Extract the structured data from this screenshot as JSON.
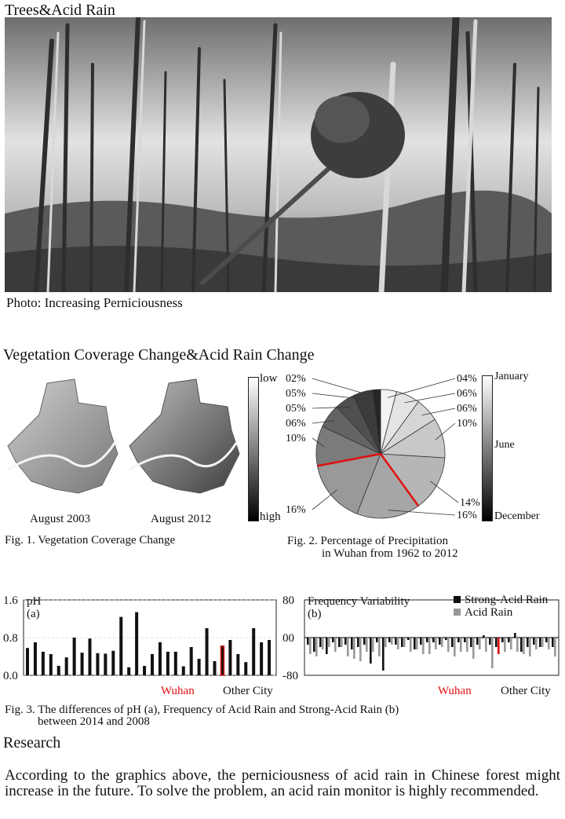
{
  "header": {
    "title": "Trees&Acid Rain",
    "photo_caption": "Photo: Increasing Perniciousness"
  },
  "section2": {
    "title": "Vegetation Coverage Change&Acid Rain Change",
    "map_left_label": "August 2003",
    "map_right_label": "August 2012",
    "legend_low": "low",
    "legend_high": "high",
    "fig1_caption": "Fig. 1. Vegetation Coverage Change",
    "fig2_caption_line1": "Fig. 2. Percentage of Precipitation",
    "fig2_caption_line2": "in Wuhan from 1962 to 2012",
    "pie_legend": {
      "top": "January",
      "mid": "June",
      "bottom": "December"
    }
  },
  "chart_data": [
    {
      "type": "pie",
      "title": "",
      "labels": [
        "04%",
        "06%",
        "06%",
        "10%",
        "14%",
        "16%",
        "16%",
        "10%",
        "06%",
        "05%",
        "05%",
        "02%"
      ],
      "values": [
        4,
        6,
        6,
        10,
        14,
        16,
        16,
        10,
        6,
        5,
        5,
        2
      ],
      "colors": [
        "#f2f2f2",
        "#e4e4e4",
        "#d6d6d6",
        "#c8c8c8",
        "#b6b6b6",
        "#a6a6a6",
        "#999999",
        "#7b7b7b",
        "#646464",
        "#4f4f4f",
        "#3c3c3c",
        "#262626"
      ],
      "highlight_color": "#e01010"
    },
    {
      "type": "bar",
      "ylabel": "pH",
      "panel": "(a)",
      "yticks": [
        "1.6",
        "0.8",
        "0.0"
      ],
      "ylim": [
        0,
        1.6
      ],
      "highlight_label": "Wuhan",
      "other_label": "Other City",
      "highlight_index": 25,
      "values": [
        0.58,
        0.7,
        0.5,
        0.45,
        0.2,
        0.38,
        0.8,
        0.48,
        0.78,
        0.47,
        0.46,
        0.52,
        1.24,
        0.17,
        1.34,
        0.2,
        0.45,
        0.7,
        0.5,
        0.5,
        0.19,
        0.6,
        0.35,
        1.0,
        0.3,
        0.62,
        0.75,
        0.45,
        0.28,
        1.0,
        0.7,
        0.75
      ]
    },
    {
      "type": "bar",
      "ylabel": "Frequency Variability",
      "panel": "(b)",
      "yticks": [
        "80",
        "00",
        "-80"
      ],
      "ylim": [
        -80,
        80
      ],
      "highlight_label": "Wuhan",
      "other_label": "Other City",
      "series": [
        {
          "name": "Strong-Acid Rain",
          "color": "#111111",
          "values": [
            -15,
            -30,
            -20,
            -35,
            -10,
            -20,
            -15,
            -25,
            -20,
            -15,
            -55,
            -10,
            -70,
            -10,
            -15,
            -20,
            -5,
            -25,
            -15,
            -10,
            -10,
            -15,
            -5,
            -20,
            -10,
            -10,
            -20,
            -15,
            5,
            -15,
            -20,
            -10,
            -10,
            10,
            -30,
            -20,
            -15,
            -20,
            -10,
            -20
          ]
        },
        {
          "name": "Acid Rain",
          "color": "#999999",
          "values": [
            -35,
            -40,
            -25,
            -20,
            -30,
            -20,
            -40,
            -45,
            -50,
            -30,
            -30,
            -40,
            -20,
            -15,
            -25,
            -20,
            -30,
            -25,
            -35,
            -35,
            -25,
            -20,
            -30,
            -40,
            -30,
            -30,
            -45,
            -25,
            -30,
            -65,
            -35,
            -30,
            -25,
            -30,
            -35,
            -40,
            -25,
            -20,
            -25,
            -40
          ]
        }
      ]
    }
  ],
  "fig3_caption_line1": "Fig. 3. The differences of pH (a), Frequency of Acid Rain and Strong-Acid Rain (b)",
  "fig3_caption_line2": "between 2014 and 2008",
  "research": {
    "title": "Research",
    "text": "According to the graphics above, the perniciousness of acid rain in Chinese forest might increase in the future. To solve the problem, an acid rain monitor is highly recommended."
  }
}
